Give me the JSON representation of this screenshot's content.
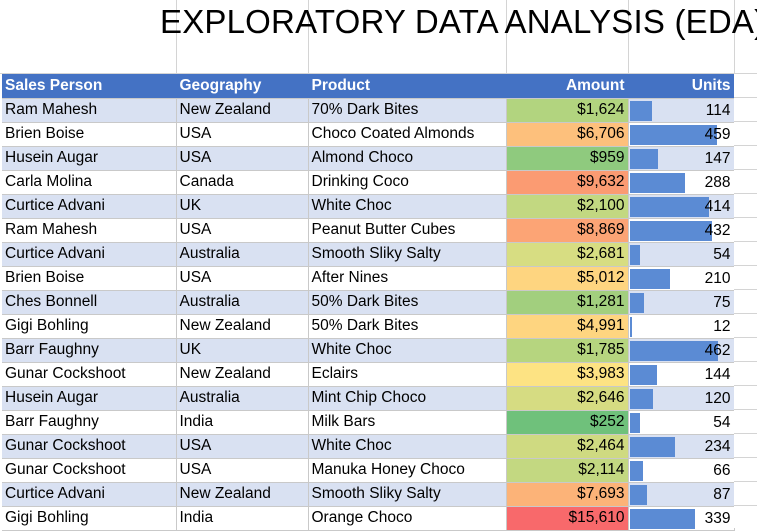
{
  "title": "EXPLORATORY DATA ANALYSIS (EDA)",
  "headers": {
    "sales_person": "Sales Person",
    "geography": "Geography",
    "product": "Product",
    "amount": "Amount",
    "units": "Units"
  },
  "max_units": 462,
  "rows": [
    {
      "sales_person": "Ram Mahesh",
      "geography": "New Zealand",
      "product": "70% Dark Bites",
      "amount": "$1,624",
      "amount_color": "#b2d47f",
      "units": 114
    },
    {
      "sales_person": "Brien Boise",
      "geography": "USA",
      "product": "Choco Coated Almonds",
      "amount": "$6,706",
      "amount_color": "#fdc07c",
      "units": 459
    },
    {
      "sales_person": "Husein Augar",
      "geography": "USA",
      "product": "Almond Choco",
      "amount": "$959",
      "amount_color": "#8fca7e",
      "units": 147
    },
    {
      "sales_person": "Carla Molina",
      "geography": "Canada",
      "product": "Drinking Coco",
      "amount": "$9,632",
      "amount_color": "#fb9b72",
      "units": 288
    },
    {
      "sales_person": "Curtice Advani",
      "geography": "UK",
      "product": "White Choc",
      "amount": "$2,100",
      "amount_color": "#c2d881",
      "units": 414
    },
    {
      "sales_person": "Ram Mahesh",
      "geography": "USA",
      "product": "Peanut Butter Cubes",
      "amount": "$8,869",
      "amount_color": "#fca475",
      "units": 432
    },
    {
      "sales_person": "Curtice Advani",
      "geography": "Australia",
      "product": "Smooth Sliky Salty",
      "amount": "$2,681",
      "amount_color": "#d7dd82",
      "units": 54
    },
    {
      "sales_person": "Brien Boise",
      "geography": "USA",
      "product": "After Nines",
      "amount": "$5,012",
      "amount_color": "#fed580",
      "units": 210
    },
    {
      "sales_person": "Ches Bonnell",
      "geography": "Australia",
      "product": "50% Dark Bites",
      "amount": "$1,281",
      "amount_color": "#a2cf7e",
      "units": 75
    },
    {
      "sales_person": "Gigi Bohling",
      "geography": "New Zealand",
      "product": "50% Dark Bites",
      "amount": "$4,991",
      "amount_color": "#fed580",
      "units": 12
    },
    {
      "sales_person": "Barr Faughny",
      "geography": "UK",
      "product": "White Choc",
      "amount": "$1,785",
      "amount_color": "#b6d57f",
      "units": 462
    },
    {
      "sales_person": "Gunar Cockshoot",
      "geography": "New Zealand",
      "product": "Eclairs",
      "amount": "$3,983",
      "amount_color": "#fde383",
      "units": 144
    },
    {
      "sales_person": "Husein Augar",
      "geography": "Australia",
      "product": "Mint Chip Choco",
      "amount": "$2,646",
      "amount_color": "#d6dc82",
      "units": 120
    },
    {
      "sales_person": "Barr Faughny",
      "geography": "India",
      "product": "Milk Bars",
      "amount": "$252",
      "amount_color": "#6fc17b",
      "units": 54
    },
    {
      "sales_person": "Gunar Cockshoot",
      "geography": "USA",
      "product": "White Choc",
      "amount": "$2,464",
      "amount_color": "#cfda81",
      "units": 234
    },
    {
      "sales_person": "Gunar Cockshoot",
      "geography": "USA",
      "product": "Manuka Honey Choco",
      "amount": "$2,114",
      "amount_color": "#c3d881",
      "units": 66
    },
    {
      "sales_person": "Curtice Advani",
      "geography": "New Zealand",
      "product": "Smooth Sliky Salty",
      "amount": "$7,693",
      "amount_color": "#fcb378",
      "units": 87
    },
    {
      "sales_person": "Gigi Bohling",
      "geography": "India",
      "product": "Orange Choco",
      "amount": "$15,610",
      "amount_color": "#f8696b",
      "units": 339
    }
  ]
}
